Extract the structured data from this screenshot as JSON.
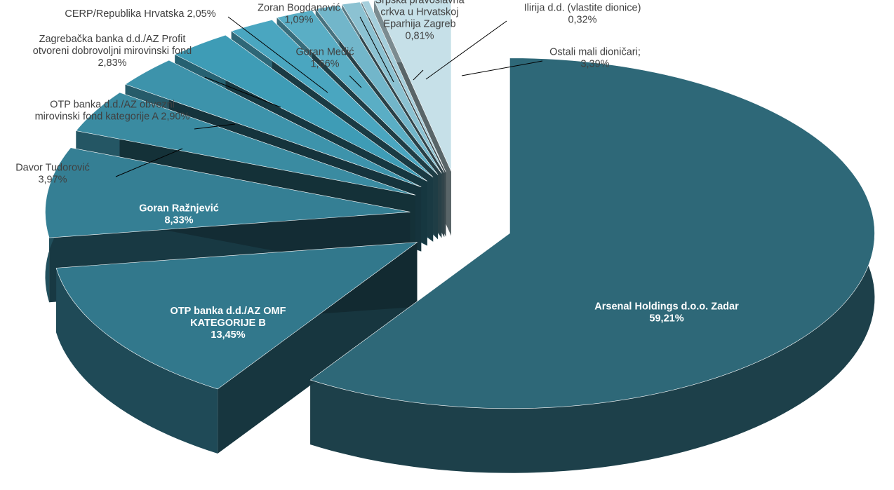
{
  "chart_data": {
    "type": "pie",
    "title": "",
    "slices": [
      {
        "label_lines": [
          "Arsenal Holdings d.o.o. Zadar",
          "59,21%"
        ],
        "value": 59.21,
        "color": "#2e6878"
      },
      {
        "label_lines": [
          "OTP banka d.d./AZ OMF",
          "KATEGORIJE B",
          "13,45%"
        ],
        "value": 13.45,
        "color": "#32788c"
      },
      {
        "label_lines": [
          "Goran Ražnjević",
          "8,33%"
        ],
        "value": 8.33,
        "color": "#357f94"
      },
      {
        "label_lines": [
          "Davor Tudorović",
          "3,97%"
        ],
        "value": 3.97,
        "color": "#3a8ba1"
      },
      {
        "label_lines": [
          "OTP banka d.d./AZ obvezni",
          "mirovinski fond kategorije A 2,90%"
        ],
        "value": 2.9,
        "color": "#3d93ab"
      },
      {
        "label_lines": [
          "Zagrebačka banka d.d./AZ Profit",
          "otvoreni dobrovoljni mirovinski fond",
          "2,83%"
        ],
        "value": 2.83,
        "color": "#3e9cb6"
      },
      {
        "label_lines": [
          "CERP/Republika Hrvatska 2,05%"
        ],
        "value": 2.05,
        "color": "#4aa6c0"
      },
      {
        "label_lines": [
          "Goran Medić",
          "1,66%"
        ],
        "value": 1.66,
        "color": "#5aaec5"
      },
      {
        "label_lines": [
          "Zoran Bogdanović",
          "1,09%"
        ],
        "value": 1.09,
        "color": "#72b6ca"
      },
      {
        "label_lines": [
          "Srpska pravoslavna",
          "crkva u Hrvatskoj",
          "Eparhija Zagreb",
          "0,81%"
        ],
        "value": 0.81,
        "color": "#8cc2d2"
      },
      {
        "label_lines": [
          "Ilirija d.d. (vlastite dionice)",
          "0,32%"
        ],
        "value": 0.32,
        "color": "#a6cfdc"
      },
      {
        "label_lines": [
          "Ostali mali dioničari;",
          "3,39%"
        ],
        "value": 3.39,
        "color": "#c6e0e8"
      }
    ],
    "legend": "none"
  }
}
